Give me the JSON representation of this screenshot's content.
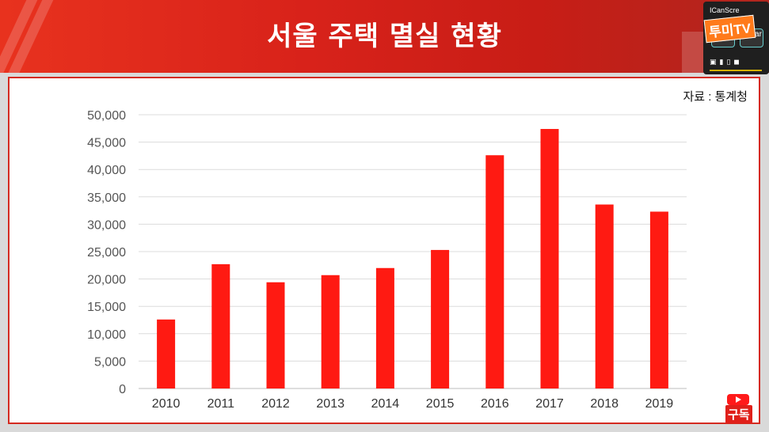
{
  "header": {
    "title": "서울 주택 멸실 현황"
  },
  "widget": {
    "title": "ICanScre",
    "logo": "투미TV",
    "clear_label": "Clear"
  },
  "source": "자료 : 통계청",
  "subscribe": "구독",
  "colors": {
    "bar": "#ff1a12",
    "banner": "#d8221a",
    "panel_border": "#d42a20"
  },
  "chart_data": {
    "type": "bar",
    "title": "",
    "xlabel": "",
    "ylabel": "",
    "categories": [
      "2010",
      "2011",
      "2012",
      "2013",
      "2014",
      "2015",
      "2016",
      "2017",
      "2018",
      "2019"
    ],
    "values": [
      12600,
      22700,
      19400,
      20700,
      22000,
      25300,
      42600,
      47400,
      33600,
      32300
    ],
    "ylim": [
      0,
      50000
    ],
    "yticks": [
      "0",
      "5,000",
      "10,000",
      "15,000",
      "20,000",
      "25,000",
      "30,000",
      "35,000",
      "40,000",
      "45,000",
      "50,000"
    ],
    "grid": true,
    "legend": "none"
  }
}
